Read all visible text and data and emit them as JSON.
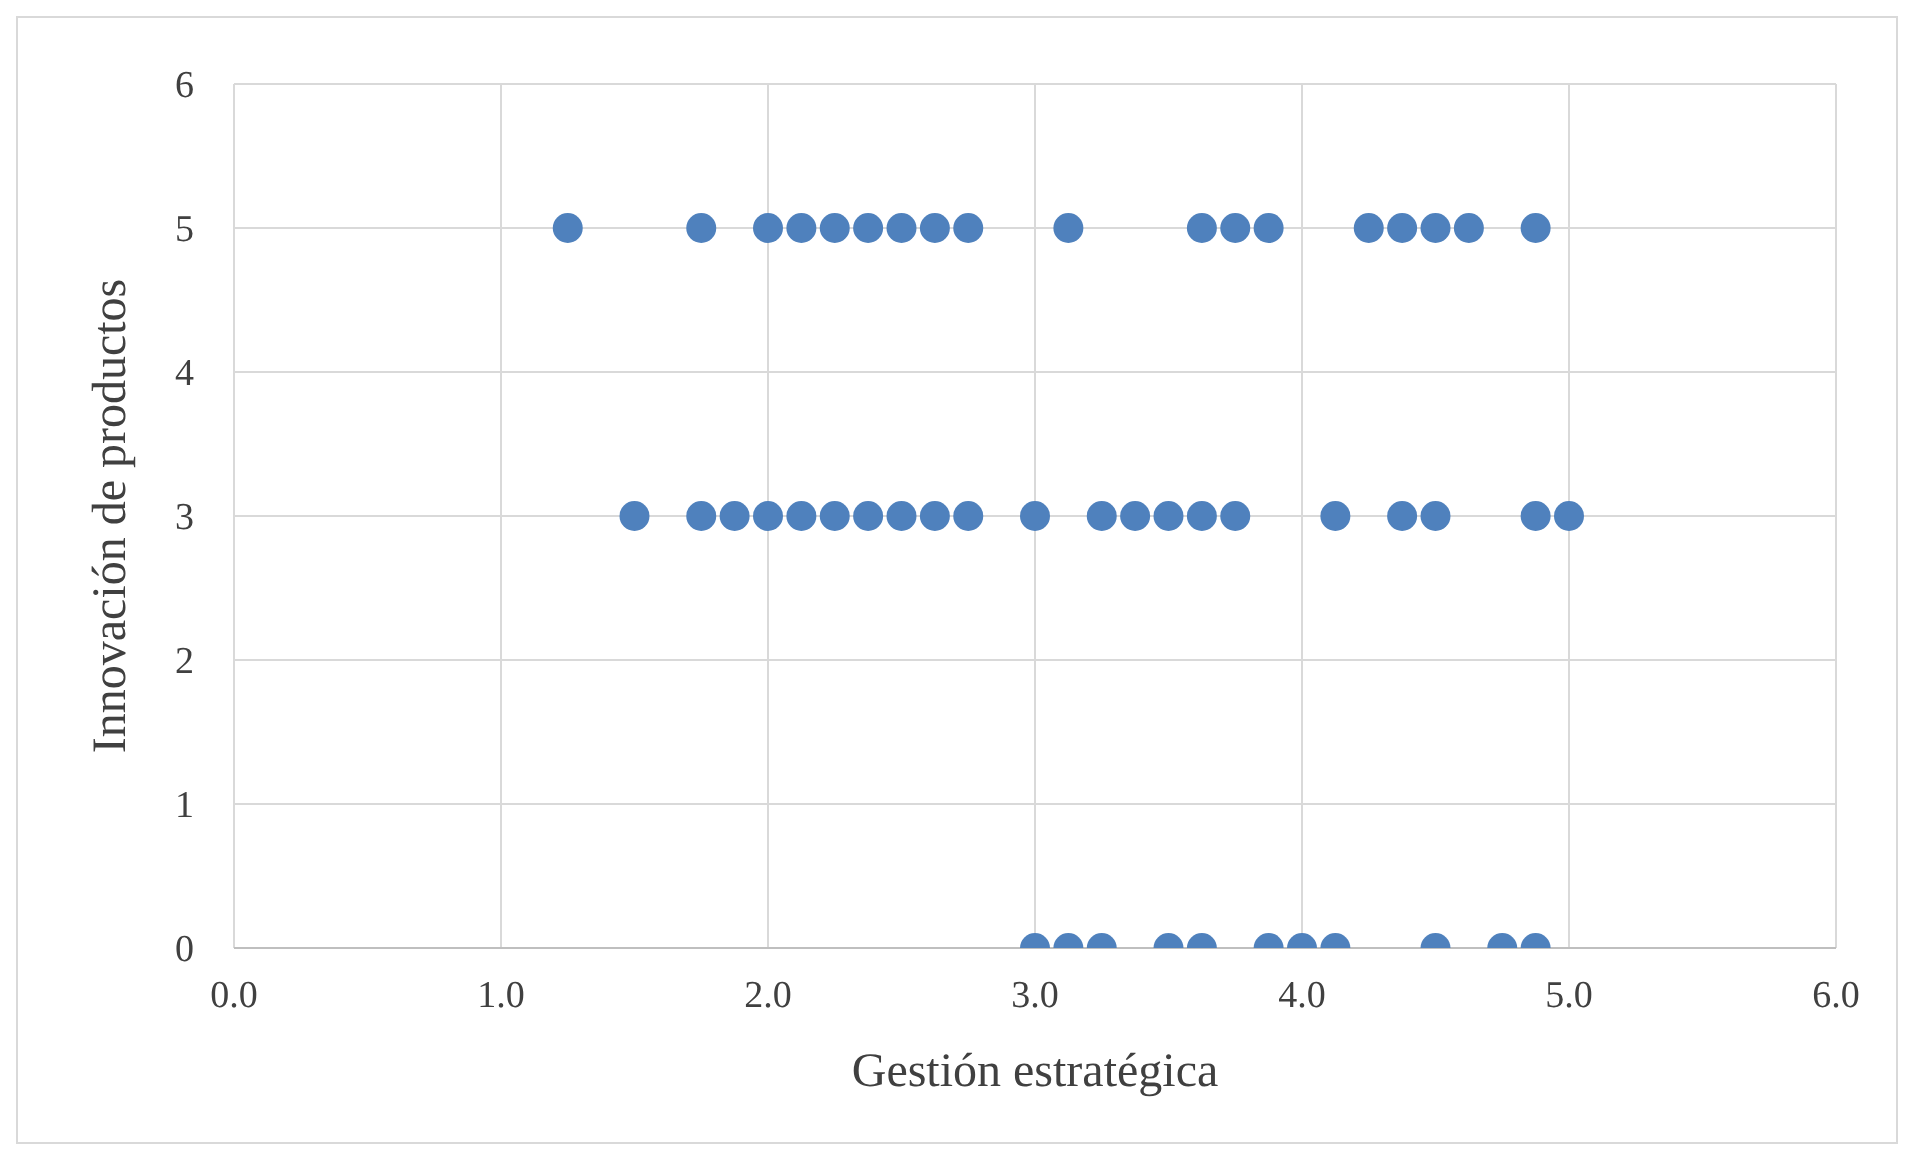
{
  "chart_data": {
    "type": "scatter",
    "xlabel": "Gestión estratégica",
    "ylabel": "Innovación de productos",
    "x": [
      1.25,
      1.75,
      2.0,
      2.125,
      2.25,
      2.375,
      2.5,
      2.625,
      2.75,
      3.125,
      3.625,
      3.75,
      3.875,
      4.25,
      4.375,
      4.5,
      4.625,
      4.875,
      1.5,
      1.75,
      1.875,
      2.0,
      2.125,
      2.25,
      2.375,
      2.5,
      2.625,
      2.75,
      3.0,
      3.25,
      3.375,
      3.5,
      3.625,
      3.75,
      4.125,
      4.375,
      4.5,
      4.875,
      5.0,
      3.0,
      3.125,
      3.25,
      3.5,
      3.625,
      3.875,
      4.0,
      4.125,
      4.5,
      4.75,
      4.875
    ],
    "values": [
      5,
      5,
      5,
      5,
      5,
      5,
      5,
      5,
      5,
      5,
      5,
      5,
      5,
      5,
      5,
      5,
      5,
      5,
      3,
      3,
      3,
      3,
      3,
      3,
      3,
      3,
      3,
      3,
      3,
      3,
      3,
      3,
      3,
      3,
      3,
      3,
      3,
      3,
      3,
      0,
      0,
      0,
      0,
      0,
      0,
      0,
      0,
      0,
      0,
      0
    ],
    "color": "#4f81bd",
    "marker": "circle",
    "xlim": [
      0,
      6
    ],
    "xticks": [
      {
        "value": 0,
        "label": "0.0"
      },
      {
        "value": 1,
        "label": "1.0"
      },
      {
        "value": 2,
        "label": "2.0"
      },
      {
        "value": 3,
        "label": "3.0"
      },
      {
        "value": 4,
        "label": "4.0"
      },
      {
        "value": 5,
        "label": "5.0"
      },
      {
        "value": 6,
        "label": "6.0"
      }
    ],
    "ylim": [
      0,
      6
    ],
    "yticks": [
      0,
      1,
      2,
      3,
      4,
      5,
      6
    ],
    "grid": true
  }
}
